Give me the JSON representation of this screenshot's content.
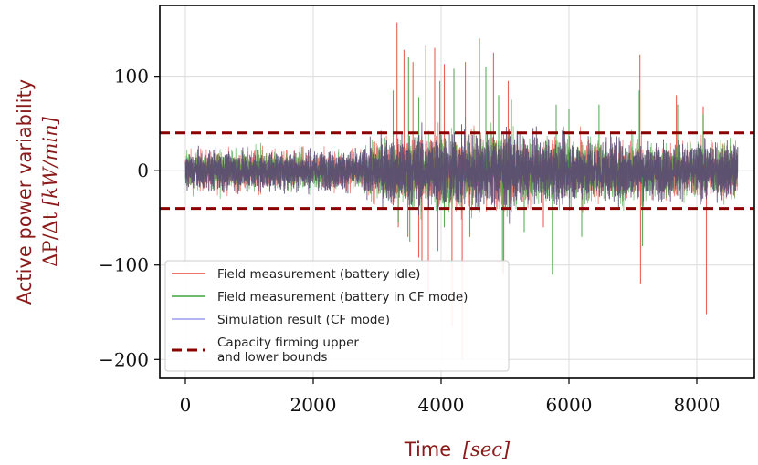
{
  "chart_data": {
    "type": "line",
    "ylabel_line1": "Active power variability",
    "ylabel_line2_math": "ΔP/Δt",
    "ylabel_line2_unit": "[kW/min]",
    "xlabel_text": "Time",
    "xlabel_unit": "[sec]",
    "xlim": [
      -400,
      8900
    ],
    "ylim": [
      -220,
      175
    ],
    "xticks": [
      0,
      2000,
      4000,
      6000,
      8000
    ],
    "xtick_labels": [
      "0",
      "2000",
      "4000",
      "6000",
      "8000"
    ],
    "yticks": [
      100,
      0,
      -100,
      -200
    ],
    "ytick_labels": [
      "100",
      "0",
      "−100",
      "−200"
    ],
    "grid": true,
    "legend_position": "lower left",
    "x_range": [
      0,
      8640
    ],
    "bounds": [
      40,
      -40
    ],
    "series": [
      {
        "name": "Field measurement (battery idle)",
        "color": "#e8463d",
        "spikes": [
          [
            3310,
            157
          ],
          [
            3330,
            -60
          ],
          [
            3420,
            128
          ],
          [
            3480,
            -70
          ],
          [
            3560,
            115
          ],
          [
            3650,
            -92
          ],
          [
            3700,
            -95
          ],
          [
            3760,
            133
          ],
          [
            3800,
            -130
          ],
          [
            3900,
            130
          ],
          [
            3950,
            -85
          ],
          [
            4050,
            113
          ],
          [
            4170,
            -165
          ],
          [
            4330,
            -200
          ],
          [
            4380,
            115
          ],
          [
            4600,
            140
          ],
          [
            4820,
            125
          ],
          [
            4980,
            -110
          ],
          [
            5050,
            95
          ],
          [
            5600,
            -60
          ],
          [
            7110,
            123
          ],
          [
            7120,
            -120
          ],
          [
            7680,
            80
          ],
          [
            8100,
            68
          ],
          [
            8150,
            -152
          ]
        ]
      },
      {
        "name": "Field measurement (battery in CF mode)",
        "color": "#3ea33e",
        "spikes": [
          [
            3250,
            85
          ],
          [
            3330,
            -55
          ],
          [
            3490,
            120
          ],
          [
            3510,
            -75
          ],
          [
            3650,
            78
          ],
          [
            3980,
            95
          ],
          [
            4050,
            -60
          ],
          [
            4200,
            108
          ],
          [
            4450,
            -70
          ],
          [
            4700,
            110
          ],
          [
            4900,
            80
          ],
          [
            4960,
            -108
          ],
          [
            5100,
            75
          ],
          [
            5300,
            -65
          ],
          [
            5740,
            -110
          ],
          [
            5800,
            70
          ],
          [
            6000,
            65
          ],
          [
            6200,
            -70
          ],
          [
            6470,
            70
          ],
          [
            7100,
            85
          ],
          [
            7150,
            -80
          ],
          [
            7700,
            70
          ],
          [
            8100,
            60
          ]
        ]
      },
      {
        "name": "Simulation result (CF mode)",
        "color": "#9a9cf0",
        "spikes": []
      }
    ],
    "bounds_legend_label": "Capacity firming upper and lower bounds",
    "bounds_legend_lines": [
      "Capacity firming upper",
      "and lower bounds"
    ],
    "bounds_color": "#8b0000"
  }
}
